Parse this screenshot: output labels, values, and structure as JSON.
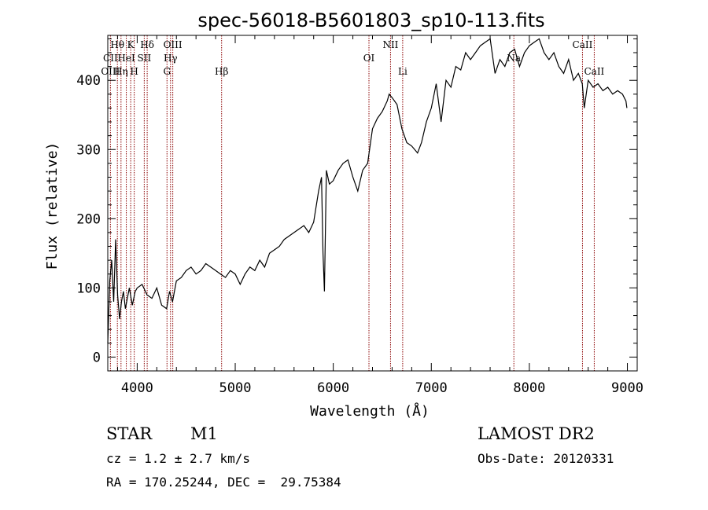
{
  "chart_data": {
    "type": "line",
    "title": "spec-56018-B5601803_sp10-113.fits",
    "xlabel": "Wavelength (Å)",
    "ylabel": "Flux (relative)",
    "xlim": [
      3700,
      9100
    ],
    "ylim": [
      -20,
      465
    ],
    "xticks": [
      4000,
      5000,
      6000,
      7000,
      8000,
      9000
    ],
    "yticks": [
      0,
      100,
      200,
      300,
      400
    ],
    "grid": false,
    "line_color": "#000000",
    "series": [
      {
        "x": [
          3700,
          3720,
          3740,
          3760,
          3780,
          3800,
          3820,
          3840,
          3860,
          3880,
          3900,
          3920,
          3950,
          3980,
          4000,
          4050,
          4100,
          4150,
          4200,
          4250,
          4300,
          4330,
          4360,
          4400,
          4450,
          4500,
          4550,
          4600,
          4650,
          4700,
          4750,
          4800,
          4850,
          4900,
          4950,
          5000,
          5050,
          5100,
          5150,
          5200,
          5250,
          5300,
          5350,
          5400,
          5450,
          5500,
          5550,
          5600,
          5650,
          5700,
          5750,
          5800,
          5850,
          5880,
          5895,
          5910,
          5930,
          5960,
          6000,
          6050,
          6100,
          6150,
          6200,
          6250,
          6300,
          6350,
          6400,
          6450,
          6500,
          6550,
          6570,
          6600,
          6650,
          6700,
          6750,
          6800,
          6830,
          6860,
          6900,
          6950,
          7000,
          7050,
          7100,
          7150,
          7200,
          7250,
          7300,
          7350,
          7400,
          7450,
          7500,
          7550,
          7600,
          7630,
          7650,
          7700,
          7750,
          7800,
          7850,
          7900,
          7950,
          8000,
          8050,
          8100,
          8150,
          8200,
          8250,
          8300,
          8350,
          8400,
          8450,
          8500,
          8540,
          8560,
          8580,
          8600,
          8650,
          8700,
          8750,
          8800,
          8850,
          8900,
          8950,
          8985,
          8995
        ],
        "y": [
          20,
          110,
          140,
          80,
          170,
          90,
          55,
          80,
          95,
          70,
          85,
          100,
          75,
          95,
          100,
          105,
          90,
          85,
          100,
          75,
          70,
          95,
          80,
          110,
          115,
          125,
          130,
          120,
          125,
          135,
          130,
          125,
          120,
          115,
          125,
          120,
          105,
          120,
          130,
          125,
          140,
          130,
          150,
          155,
          160,
          170,
          175,
          180,
          185,
          190,
          180,
          195,
          240,
          260,
          150,
          95,
          270,
          250,
          255,
          270,
          280,
          285,
          260,
          240,
          270,
          280,
          330,
          345,
          355,
          370,
          380,
          375,
          365,
          330,
          310,
          305,
          300,
          295,
          310,
          340,
          360,
          395,
          340,
          400,
          390,
          420,
          415,
          440,
          430,
          440,
          450,
          455,
          460,
          430,
          410,
          430,
          420,
          440,
          445,
          420,
          440,
          450,
          455,
          460,
          440,
          430,
          440,
          420,
          410,
          430,
          400,
          410,
          395,
          360,
          380,
          400,
          390,
          395,
          385,
          390,
          380,
          385,
          380,
          370,
          360
        ]
      }
    ],
    "line_labels": [
      {
        "name": "Hθ",
        "x": 3798,
        "row": 0
      },
      {
        "name": "K",
        "x": 3934,
        "row": 0
      },
      {
        "name": "Hδ",
        "x": 4102,
        "row": 0
      },
      {
        "name": "OIII",
        "x": 4363,
        "row": 0
      },
      {
        "name": "NII",
        "x": 6584,
        "row": 0
      },
      {
        "name": "CaII",
        "x": 8542,
        "row": 0
      },
      {
        "name": "CII",
        "x": 3727,
        "row": 1
      },
      {
        "name": "HeI",
        "x": 3889,
        "row": 1
      },
      {
        "name": "SII",
        "x": 4072,
        "row": 1
      },
      {
        "name": "Hγ",
        "x": 4340,
        "row": 1
      },
      {
        "name": "OI",
        "x": 6364,
        "row": 1
      },
      {
        "name": "Na",
        "x": 7842,
        "row": 1
      },
      {
        "name": "OIII",
        "x": 3727,
        "row": 2
      },
      {
        "name": "Hη",
        "x": 3835,
        "row": 2
      },
      {
        "name": "H",
        "x": 3970,
        "row": 2
      },
      {
        "name": "G",
        "x": 4304,
        "row": 2
      },
      {
        "name": "Hβ",
        "x": 4861,
        "row": 2
      },
      {
        "name": "Li",
        "x": 6708,
        "row": 2
      },
      {
        "name": "CaII",
        "x": 8662,
        "row": 2
      }
    ],
    "marker_lines_x": [
      3727,
      3798,
      3835,
      3889,
      3934,
      3970,
      4072,
      4102,
      4304,
      4340,
      4363,
      4861,
      6364,
      6584,
      6708,
      7842,
      8542,
      8662
    ],
    "marker_color": "#8b0000"
  },
  "info": {
    "object_class": "STAR",
    "subclass": "M1",
    "survey": "LAMOST DR2",
    "cz": "cz = 1.2 ± 2.7 km/s",
    "obs_date": "Obs-Date: 20120331",
    "radec": "RA = 170.25244, DEC =  29.75384"
  }
}
